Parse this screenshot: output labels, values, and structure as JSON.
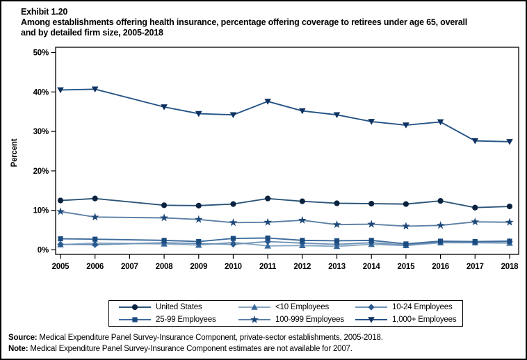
{
  "header": {
    "exhibit": "Exhibit 1.20",
    "title_lines": [
      "Among establishments offering health insurance, percentage offering coverage to retirees under age 65, overall",
      "and by detailed firm size, 2005-2018"
    ]
  },
  "chart_data": {
    "type": "line",
    "title": "Exhibit 1.20. Among establishments offering health insurance, percentage offering coverage to retirees under age 65, overall and by detailed firm size, 2005-2018",
    "xlabel": "",
    "ylabel": "Percent",
    "ylim": [
      0,
      50
    ],
    "ytick_values": [
      0,
      10,
      20,
      30,
      40,
      50
    ],
    "ytick_labels": [
      "0%",
      "10%",
      "20%",
      "30%",
      "40%",
      "50%"
    ],
    "x": [
      2005,
      2006,
      2007,
      2008,
      2009,
      2010,
      2011,
      2012,
      2013,
      2014,
      2015,
      2016,
      2017,
      2018
    ],
    "x_tick_labels": [
      "2005",
      "2006",
      "2007",
      "2008",
      "2009",
      "2010",
      "2011",
      "2012",
      "2013",
      "2014",
      "2015",
      "2016",
      "2017",
      "2018"
    ],
    "grid": false,
    "legend_position": "bottom",
    "missing_data_note": "2007 values are not available; lines connect 2006 to 2008",
    "series": [
      {
        "name": "United States",
        "marker": "circle",
        "marker_color": "#0c2340",
        "line_color": "#2c5578",
        "values": [
          12.5,
          13.0,
          null,
          11.3,
          11.2,
          11.6,
          13.0,
          12.3,
          11.8,
          11.7,
          11.6,
          12.4,
          10.7,
          11.0
        ]
      },
      {
        "name": "<10 Employees",
        "marker": "triangle-up",
        "marker_color": "#38699c",
        "line_color": "#89a7c4",
        "values": [
          1.3,
          1.7,
          null,
          1.5,
          1.2,
          1.9,
          1.0,
          1.1,
          0.9,
          1.4,
          1.1,
          1.8,
          1.8,
          1.7
        ]
      },
      {
        "name": "10-24 Employees",
        "marker": "diamond",
        "marker_color": "#2a5a90",
        "line_color": "#6e93b6",
        "values": [
          1.4,
          1.3,
          null,
          1.8,
          1.6,
          1.4,
          2.1,
          1.7,
          1.4,
          1.8,
          1.2,
          2.0,
          1.9,
          2.1
        ]
      },
      {
        "name": "25-99 Employees",
        "marker": "square",
        "marker_color": "#1b4b80",
        "line_color": "#3f6d9e",
        "values": [
          2.8,
          2.7,
          null,
          2.4,
          2.1,
          2.9,
          3.0,
          2.4,
          2.3,
          2.4,
          1.5,
          2.2,
          2.1,
          2.2
        ]
      },
      {
        "name": "100-999 Employees",
        "marker": "star",
        "marker_color": "#1d4878",
        "line_color": "#5c81a6",
        "values": [
          9.7,
          8.3,
          null,
          8.1,
          7.7,
          6.9,
          7.0,
          7.5,
          6.4,
          6.5,
          6.0,
          6.2,
          7.1,
          7.0
        ]
      },
      {
        "name": "1,000+ Employees",
        "marker": "triangle-down",
        "marker_color": "#0e3161",
        "line_color": "#255487",
        "values": [
          40.5,
          40.7,
          null,
          36.2,
          34.5,
          34.2,
          37.6,
          35.2,
          34.2,
          32.5,
          31.6,
          32.4,
          27.6,
          27.4
        ]
      }
    ]
  },
  "footer": {
    "source_label": "Source:",
    "source_text": " Medical Expenditure Panel Survey-Insurance Component, private-sector establishments, 2005-2018.",
    "note_label": "Note:",
    "note_text": " Medical Expenditure Panel Survey-Insurance Component estimates are not available for 2007."
  }
}
